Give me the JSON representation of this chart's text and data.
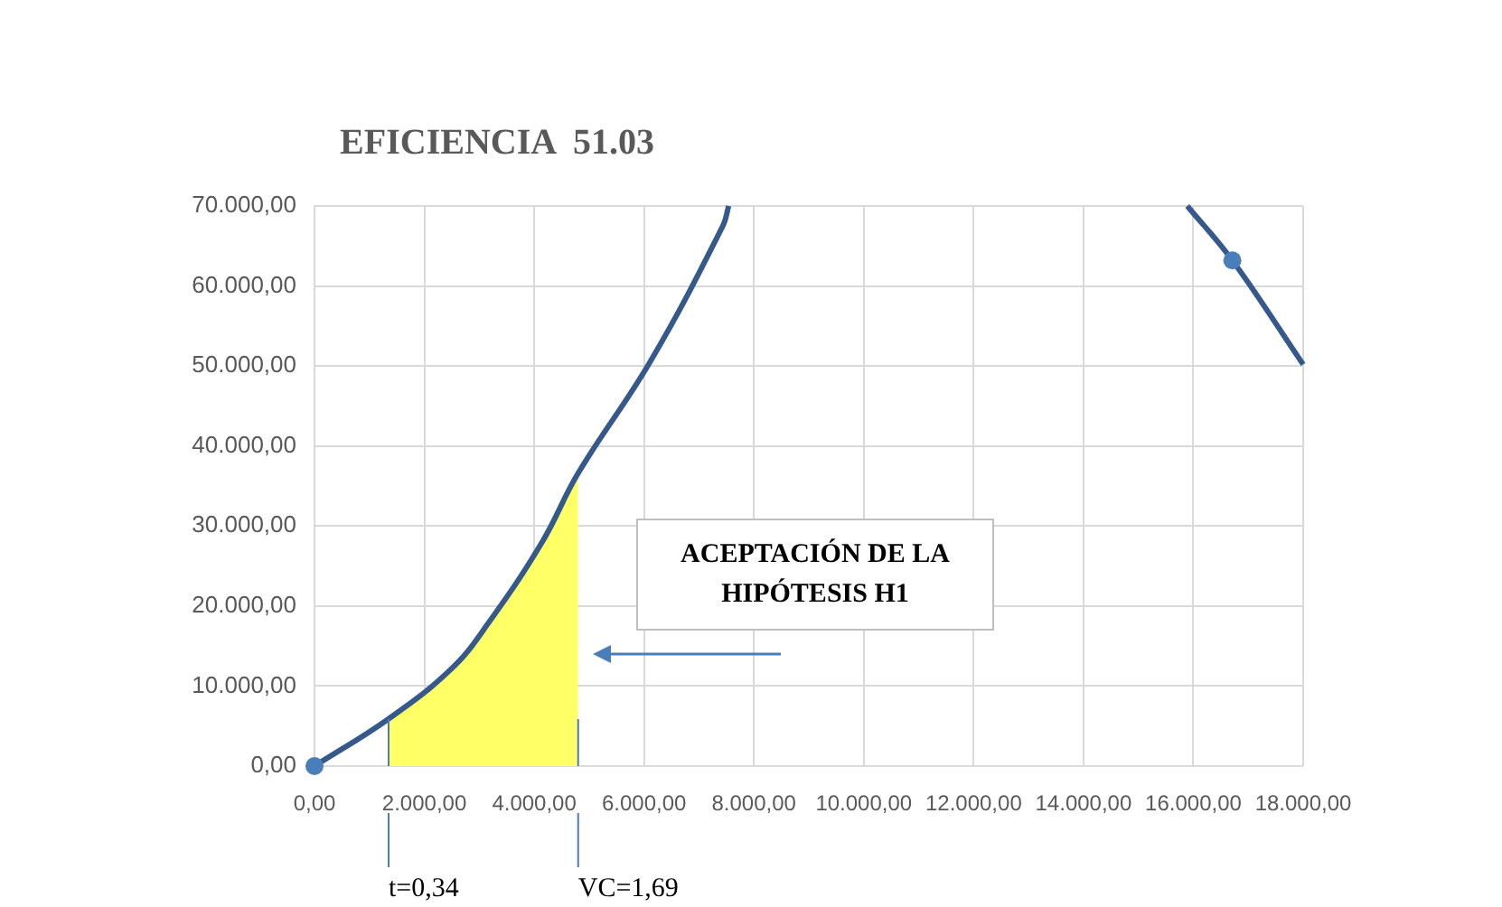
{
  "chart_data": {
    "type": "line",
    "title": "EFICIENCIA  51.03",
    "xlim": [
      0,
      18000
    ],
    "xticks": [
      {
        "value": 0,
        "label": "0,00"
      },
      {
        "value": 2000,
        "label": "2.000,00"
      },
      {
        "value": 4000,
        "label": "4.000,00"
      },
      {
        "value": 6000,
        "label": "6.000,00"
      },
      {
        "value": 8000,
        "label": "8.000,00"
      },
      {
        "value": 10000,
        "label": "10.000,00"
      },
      {
        "value": 12000,
        "label": "12.000,00"
      },
      {
        "value": 14000,
        "label": "14.000,00"
      },
      {
        "value": 16000,
        "label": "16.000,00"
      },
      {
        "value": 18000,
        "label": "18.000,00"
      }
    ],
    "ylim": [
      0,
      70000
    ],
    "yticks": [
      {
        "value": 0,
        "label": "0,00"
      },
      {
        "value": 10000,
        "label": "10.000,00"
      },
      {
        "value": 20000,
        "label": "20.000,00"
      },
      {
        "value": 30000,
        "label": "30.000,00"
      },
      {
        "value": 40000,
        "label": "40.000,00"
      },
      {
        "value": 50000,
        "label": "50.000,00"
      },
      {
        "value": 60000,
        "label": "60.000,00"
      },
      {
        "value": 70000,
        "label": "70.000,00"
      }
    ],
    "grid": true,
    "series": [
      {
        "type": "area",
        "color": "#ffff66",
        "x": [
          1349,
          2500,
          3158,
          4145,
          4800
        ],
        "values": [
          5900,
          12200,
          17800,
          28000,
          36600
        ]
      },
      {
        "color": "#35598a",
        "marker": "none",
        "x": [
          0,
          1349,
          2500,
          3158,
          4145,
          4800,
          6118,
          7434,
          7540,
          11600,
          15890,
          16711,
          17960,
          18000
        ],
        "values": [
          0,
          5900,
          12200,
          17800,
          28000,
          36600,
          50600,
          67500,
          70000,
          null,
          70000,
          63200,
          50600,
          50200
        ]
      },
      {
        "type": "scatter",
        "color": "#4a7ebb",
        "marker": "circle",
        "x": [
          0,
          16711
        ],
        "values": [
          0,
          63200
        ]
      }
    ],
    "ref_lines": [
      {
        "axis": "x",
        "value": 1349,
        "color": "#4a7ebb"
      },
      {
        "axis": "x",
        "value": 4800,
        "color": "#4a7ebb"
      }
    ],
    "annotations": [
      "ACEPTACIÓN  DE LA HIPÓTESIS  H1",
      "t=0,34",
      "VC=1,69"
    ]
  }
}
